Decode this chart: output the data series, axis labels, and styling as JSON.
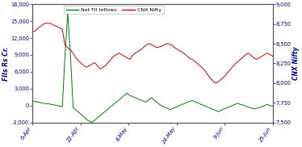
{
  "ylabel_left": "FIIs Rs Cr.",
  "ylabel_right": "CNX Nifty",
  "legend_labels": [
    "Net FII Inflows",
    "CNX Nifty"
  ],
  "legend_colors": [
    "#008000",
    "#cc0000"
  ],
  "x_tick_labels": [
    "6-Apr",
    "22-Apr",
    "8-May",
    "24-May",
    "9-Jun",
    "25-Jun"
  ],
  "ylim_left": [
    -3000,
    18000
  ],
  "ylim_right": [
    7500,
    9000
  ],
  "yticks_left": [
    -3000,
    0,
    3000,
    6000,
    9000,
    12000,
    15000,
    18000
  ],
  "yticks_right": [
    7500,
    7750,
    8000,
    8250,
    8500,
    8750,
    9000
  ],
  "fii_data": [
    800,
    700,
    600,
    500,
    400,
    350,
    300,
    200,
    100,
    0,
    -100,
    -200,
    9000,
    16500,
    9000,
    -300,
    -800,
    -1200,
    -1600,
    -2000,
    -2500,
    -2800,
    -3000,
    -2600,
    -2200,
    -1800,
    -1400,
    -1000,
    -600,
    -200,
    200,
    600,
    1000,
    1400,
    1800,
    2200,
    1800,
    1600,
    1400,
    1200,
    1000,
    800,
    600,
    1000,
    1400,
    1000,
    600,
    200,
    -100,
    -300,
    -500,
    -700,
    -500,
    -300,
    -100,
    100,
    300,
    500,
    700,
    900,
    700,
    500,
    300,
    100,
    -100,
    -300,
    -500,
    -700,
    -900,
    -1100,
    -800,
    -600,
    -400,
    -200,
    0,
    200,
    400,
    200,
    100,
    -100,
    -300,
    -400,
    -600,
    -500,
    -400,
    -200,
    0,
    200,
    0,
    -100
  ],
  "nifty_data": [
    8650,
    8660,
    8700,
    8720,
    8750,
    8760,
    8760,
    8750,
    8730,
    8720,
    8700,
    8680,
    8480,
    8450,
    8420,
    8380,
    8320,
    8280,
    8250,
    8220,
    8200,
    8220,
    8240,
    8260,
    8220,
    8180,
    8200,
    8220,
    8260,
    8300,
    8340,
    8360,
    8380,
    8360,
    8340,
    8320,
    8300,
    8350,
    8380,
    8400,
    8420,
    8450,
    8480,
    8500,
    8490,
    8470,
    8450,
    8460,
    8470,
    8490,
    8500,
    8490,
    8470,
    8440,
    8420,
    8400,
    8380,
    8350,
    8320,
    8300,
    8280,
    8250,
    8220,
    8190,
    8150,
    8100,
    8060,
    8020,
    8000,
    8020,
    8050,
    8080,
    8120,
    8160,
    8200,
    8240,
    8270,
    8300,
    8330,
    8360,
    8380,
    8350,
    8320,
    8300,
    8320,
    8340,
    8360,
    8380,
    8360,
    8340
  ],
  "line_color_fii": "#008000",
  "line_color_nifty": "#cc0000",
  "border_color": "#555555",
  "background_color": "#ffffff",
  "tick_label_color": "#00008B",
  "tick_color": "#555555"
}
